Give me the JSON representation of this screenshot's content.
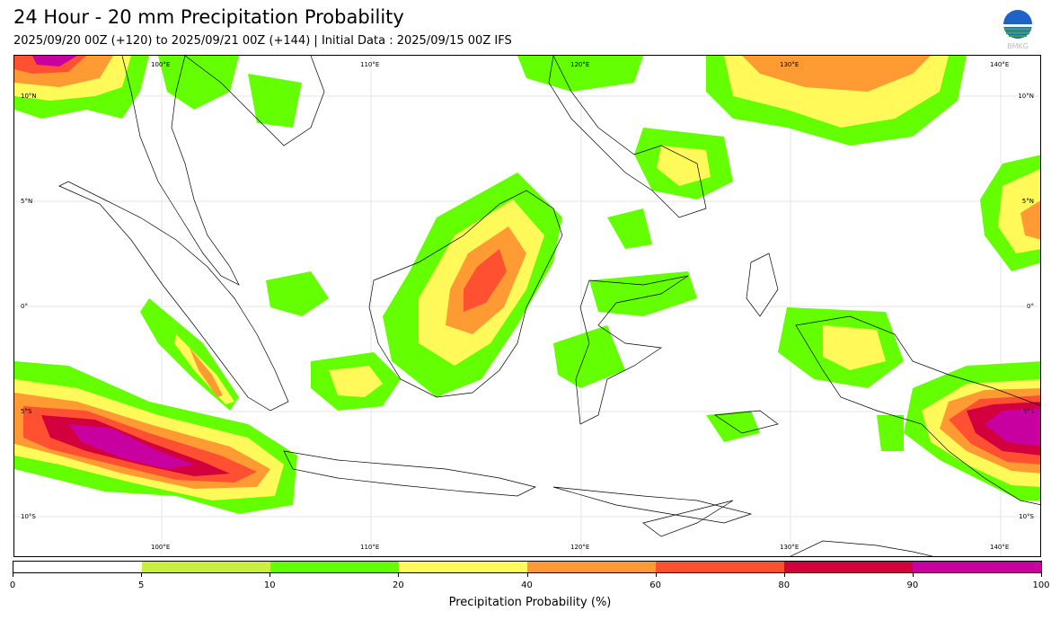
{
  "title": "24 Hour - 20 mm Precipitation Probability",
  "subtitle": "2025/09/20 00Z (+120) to 2025/09/21 00Z (+144) | Initial Data : 2025/09/15 00Z IFS",
  "logo": {
    "icon": "bmkg-logo",
    "text": "BMKG"
  },
  "map": {
    "lon_labels_top": [
      "100°E",
      "110°E",
      "120°E",
      "130°E",
      "140°E"
    ],
    "lon_labels_bottom": [
      "100°E",
      "110°E",
      "120°E",
      "130°E",
      "140°E"
    ],
    "lat_labels_left": [
      "10°N",
      "5°N",
      "0°",
      "5°S",
      "10°S"
    ],
    "lat_labels_right": [
      "10°N",
      "5°N",
      "0°",
      "5°S",
      "10°S"
    ]
  },
  "colorbar": {
    "label": "Precipitation Probability (%)",
    "ticks": [
      "0",
      "5",
      "10",
      "20",
      "40",
      "60",
      "80",
      "90",
      "100"
    ],
    "colors": [
      "#ffffff",
      "#c8f03c",
      "#64ff00",
      "#fffa5a",
      "#ff9b32",
      "#ff5032",
      "#d2003c",
      "#c800a0"
    ]
  }
}
